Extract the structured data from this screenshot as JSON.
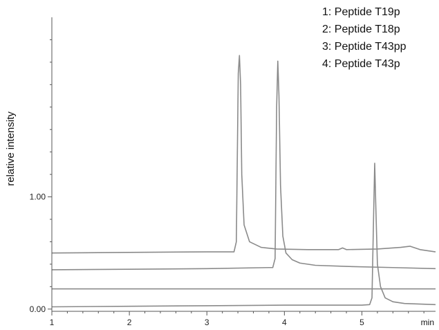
{
  "chart_data": {
    "type": "line",
    "title": "",
    "xlabel": "min",
    "ylabel": "relative intensity",
    "xlim": [
      1,
      5.95
    ],
    "ylim": [
      -0.02,
      2.6
    ],
    "x_ticks": [
      {
        "value": 1,
        "label": "1"
      },
      {
        "value": 2,
        "label": "2"
      },
      {
        "value": 3,
        "label": "3"
      },
      {
        "value": 4,
        "label": "4"
      },
      {
        "value": 5,
        "label": "5"
      }
    ],
    "x_minor_step": 0.2,
    "y_ticks": [
      {
        "value": 0.0,
        "label": "0.00"
      },
      {
        "value": 1.0,
        "label": "1.00"
      }
    ],
    "y_minor_ticks": [
      0.2,
      0.4,
      0.6,
      0.8,
      1.2,
      1.4,
      1.6,
      1.8,
      2.0,
      2.2,
      2.4
    ],
    "grid": false,
    "line_color": "#8a8a8a",
    "axis_color": "#555555",
    "legend": {
      "position": "top-right",
      "entries": [
        "1: Peptide T19p",
        "2: Peptide T18p",
        "3: Peptide T43pp",
        "4: Peptide T43p"
      ]
    },
    "series": [
      {
        "points": [
          [
            1.0,
            0.02
          ],
          [
            2.0,
            0.025
          ],
          [
            3.0,
            0.03
          ],
          [
            4.0,
            0.035
          ],
          [
            5.0,
            0.035
          ],
          [
            5.1,
            0.04
          ],
          [
            5.13,
            0.1
          ],
          [
            5.15,
            0.8
          ],
          [
            5.165,
            1.3
          ],
          [
            5.18,
            0.9
          ],
          [
            5.2,
            0.4
          ],
          [
            5.24,
            0.2
          ],
          [
            5.3,
            0.1
          ],
          [
            5.4,
            0.065
          ],
          [
            5.55,
            0.05
          ],
          [
            5.95,
            0.04
          ]
        ]
      },
      {
        "points": [
          [
            1.0,
            0.18
          ],
          [
            5.95,
            0.18
          ]
        ]
      },
      {
        "points": [
          [
            1.0,
            0.35
          ],
          [
            2.0,
            0.355
          ],
          [
            3.0,
            0.36
          ],
          [
            3.8,
            0.37
          ],
          [
            3.85,
            0.37
          ],
          [
            3.88,
            0.45
          ],
          [
            3.9,
            1.8
          ],
          [
            3.915,
            2.21
          ],
          [
            3.93,
            1.9
          ],
          [
            3.95,
            1.1
          ],
          [
            3.98,
            0.65
          ],
          [
            4.02,
            0.5
          ],
          [
            4.1,
            0.44
          ],
          [
            4.2,
            0.41
          ],
          [
            4.4,
            0.39
          ],
          [
            4.8,
            0.38
          ],
          [
            5.4,
            0.37
          ],
          [
            5.95,
            0.36
          ]
        ]
      },
      {
        "points": [
          [
            1.0,
            0.5
          ],
          [
            2.0,
            0.505
          ],
          [
            3.0,
            0.51
          ],
          [
            3.35,
            0.51
          ],
          [
            3.38,
            0.6
          ],
          [
            3.405,
            2.1
          ],
          [
            3.42,
            2.26
          ],
          [
            3.435,
            2.0
          ],
          [
            3.45,
            1.2
          ],
          [
            3.48,
            0.75
          ],
          [
            3.55,
            0.6
          ],
          [
            3.7,
            0.55
          ],
          [
            3.9,
            0.535
          ],
          [
            4.3,
            0.53
          ],
          [
            4.7,
            0.53
          ],
          [
            4.75,
            0.545
          ],
          [
            4.8,
            0.53
          ],
          [
            5.2,
            0.535
          ],
          [
            5.5,
            0.55
          ],
          [
            5.62,
            0.56
          ],
          [
            5.75,
            0.53
          ],
          [
            5.95,
            0.51
          ]
        ]
      }
    ]
  }
}
